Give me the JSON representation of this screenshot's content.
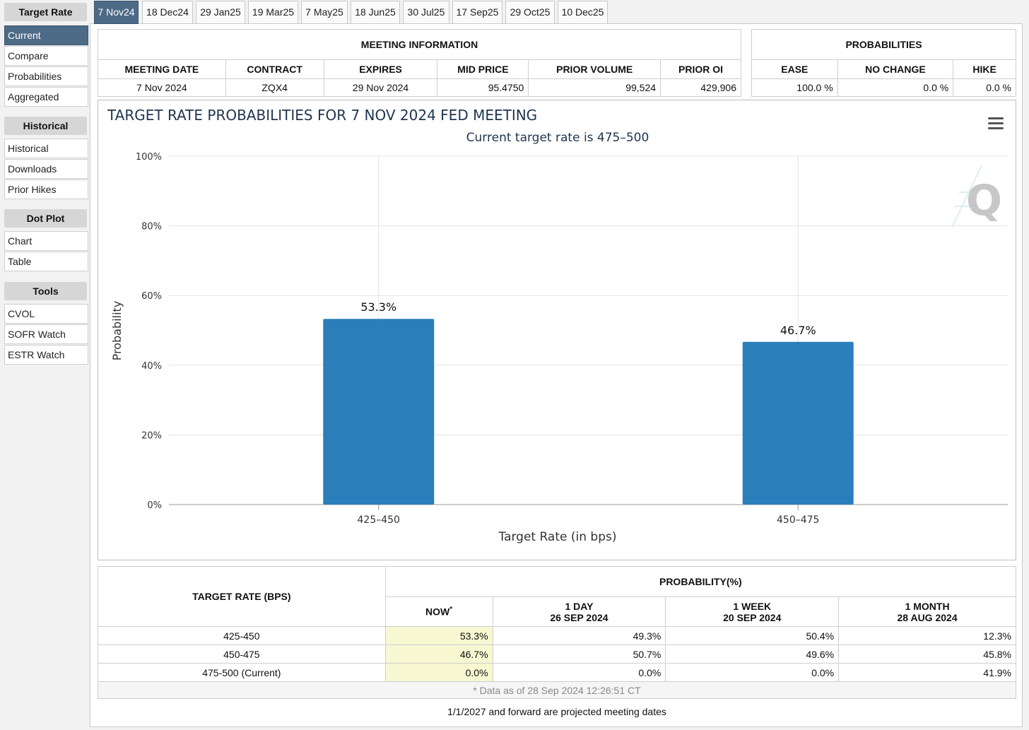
{
  "sidebar": {
    "sections": [
      {
        "title": "Target Rate",
        "items": [
          "Current",
          "Compare",
          "Probabilities",
          "Aggregated"
        ]
      },
      {
        "title": "Historical",
        "items": [
          "Historical",
          "Downloads",
          "Prior Hikes"
        ]
      },
      {
        "title": "Dot Plot",
        "items": [
          "Chart",
          "Table"
        ]
      },
      {
        "title": "Tools",
        "items": [
          "CVOL",
          "SOFR Watch",
          "ESTR Watch"
        ]
      }
    ],
    "active_item": "Current"
  },
  "tabs": [
    "7 Nov24",
    "18 Dec24",
    "29 Jan25",
    "19 Mar25",
    "7 May25",
    "18 Jun25",
    "30 Jul25",
    "17 Sep25",
    "29 Oct25",
    "10 Dec25"
  ],
  "active_tab": "7 Nov24",
  "meeting_info": {
    "title": "MEETING INFORMATION",
    "headers": [
      "MEETING DATE",
      "CONTRACT",
      "EXPIRES",
      "MID PRICE",
      "PRIOR VOLUME",
      "PRIOR OI"
    ],
    "row": [
      "7 Nov 2024",
      "ZQX4",
      "29 Nov 2024",
      "95.4750",
      "99,524",
      "429,906"
    ]
  },
  "probabilities": {
    "title": "PROBABILITIES",
    "headers": [
      "EASE",
      "NO CHANGE",
      "HIKE"
    ],
    "row": [
      "100.0 %",
      "0.0 %",
      "0.0 %"
    ]
  },
  "chart_data": {
    "type": "bar",
    "title": "TARGET RATE PROBABILITIES FOR 7 NOV 2024 FED MEETING",
    "subtitle": "Current target rate is 475–500",
    "xlabel": "Target Rate (in bps)",
    "ylabel": "Probability",
    "categories": [
      "425–450",
      "450–475"
    ],
    "values": [
      53.3,
      46.7
    ],
    "data_labels": [
      "53.3%",
      "46.7%"
    ],
    "ylim": [
      0,
      100
    ],
    "yticks": [
      "0%",
      "20%",
      "40%",
      "60%",
      "80%",
      "100%"
    ],
    "grid": true,
    "bar_color": "#2a7fba"
  },
  "bottom_table": {
    "rate_header": "TARGET RATE (BPS)",
    "prob_header": "PROBABILITY(%)",
    "columns": [
      {
        "line1": "NOW",
        "line2": "",
        "star": "*"
      },
      {
        "line1": "1 DAY",
        "line2": "26 SEP 2024",
        "star": ""
      },
      {
        "line1": "1 WEEK",
        "line2": "20 SEP 2024",
        "star": ""
      },
      {
        "line1": "1 MONTH",
        "line2": "28 AUG 2024",
        "star": ""
      }
    ],
    "rows": [
      {
        "rate": "425-450",
        "vals": [
          "53.3%",
          "49.3%",
          "50.4%",
          "12.3%"
        ]
      },
      {
        "rate": "450-475",
        "vals": [
          "46.7%",
          "50.7%",
          "49.6%",
          "45.8%"
        ]
      },
      {
        "rate": "475-500 (Current)",
        "vals": [
          "0.0%",
          "0.0%",
          "0.0%",
          "41.9%"
        ]
      }
    ],
    "footnote": "* Data as of 28 Sep 2024 12:26:51 CT"
  },
  "projection_note": "1/1/2027 and forward are projected meeting dates",
  "colors": {
    "accent": "#4d6a86",
    "bar": "#2a7fba",
    "highlight": "#f7f7d2"
  }
}
